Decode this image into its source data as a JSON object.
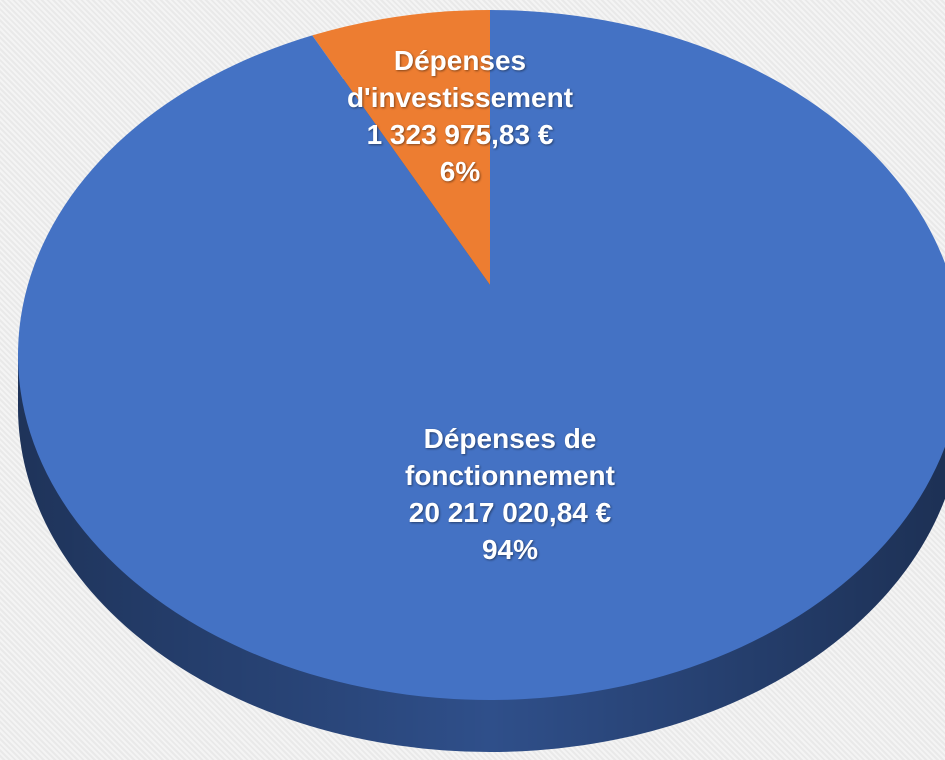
{
  "chart_data": {
    "type": "pie",
    "categories": [
      "Dépenses d'investissement",
      "Dépenses de fonctionnement"
    ],
    "values": [
      1323975.83,
      20217020.84
    ],
    "value_labels": [
      "1 323 975,83 €",
      "20 217 020,84 €"
    ],
    "percent_labels": [
      "6%",
      "94%"
    ],
    "colors": [
      "#ed7d31",
      "#4472c4"
    ],
    "side_color": "#2f4f8a"
  }
}
